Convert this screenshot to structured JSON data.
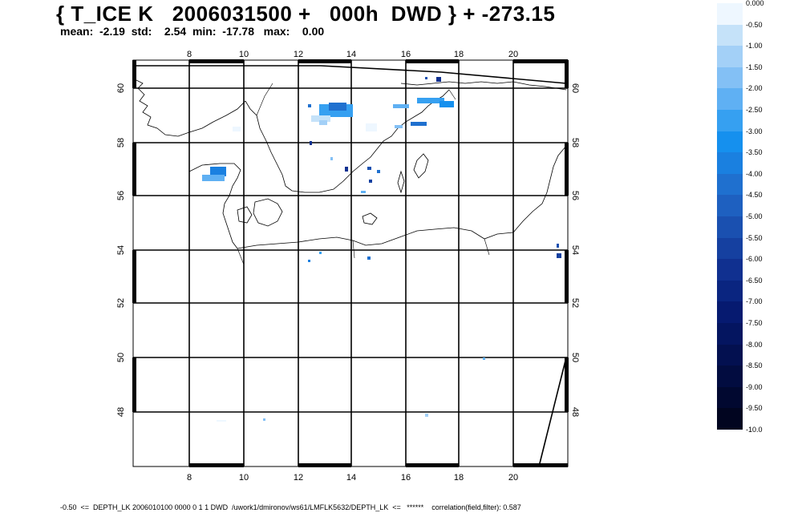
{
  "header": {
    "title": "{ T_ICE K   2006031500 +   000h  DWD } + -273.15",
    "stats": "mean:  -2.19  std:    2.54  min:  -17.78   max:    0.00"
  },
  "map": {
    "lon_ticks": [
      "8",
      "10",
      "12",
      "14",
      "16",
      "18",
      "20"
    ],
    "lat_ticks": [
      "60",
      "58",
      "56",
      "54",
      "52",
      "50",
      "48"
    ]
  },
  "colorbar": {
    "labels": [
      "0.000",
      "-0.50",
      "-1.00",
      "-1.50",
      "-2.00",
      "-2.50",
      "-3.00",
      "-3.50",
      "-4.00",
      "-4.50",
      "-5.00",
      "-5.50",
      "-6.00",
      "-6.50",
      "-7.00",
      "-7.50",
      "-8.00",
      "-8.50",
      "-9.00",
      "-9.50",
      "-10.0"
    ],
    "colors": [
      "#eef7ff",
      "#c5e2f9",
      "#a3d0f7",
      "#83c0f5",
      "#5fb0f3",
      "#36a0f1",
      "#1590ee",
      "#1a80e0",
      "#1f70cf",
      "#1e60c0",
      "#1a50b0",
      "#1540a0",
      "#103090",
      "#0a2580",
      "#061a70",
      "#041560",
      "#031050",
      "#020c40",
      "#010830",
      "#010520",
      "#000000"
    ]
  },
  "footer": {
    "text": "-0.50  <=  DEPTH_LK 2006010100 0000 0 1 1 DWD  /uwork1/dmironov/ws61/LMFLK5632/DEPTH_LK  <=   ******    correlation(field,filter): 0.587"
  }
}
